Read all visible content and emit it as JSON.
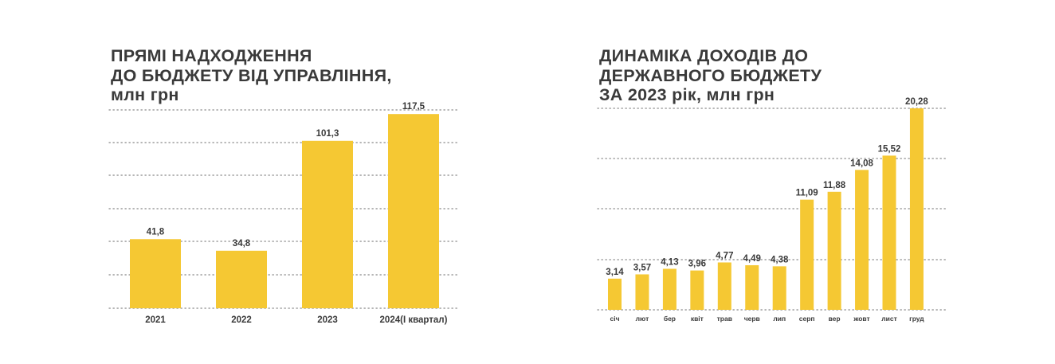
{
  "chart_data": [
    {
      "type": "bar",
      "title_lines": [
        "ПРЯМІ НАДХОДЖЕННЯ",
        "ДО БЮДЖЕТУ ВІД УПРАВЛІННЯ,",
        "млн грн"
      ],
      "categories": [
        "2021",
        "2022",
        "2023",
        "2024(І квартал)"
      ],
      "values": [
        41.8,
        34.8,
        101.3,
        117.5
      ],
      "value_labels": [
        "41,8",
        "34,8",
        "101,3",
        "117,5"
      ],
      "ylim": [
        0,
        120
      ],
      "grid": true,
      "bar_color": "#f5c833"
    },
    {
      "type": "bar",
      "title_lines": [
        "ДИНАМІКА ДОХОДІВ ДО",
        "ДЕРЖАВНОГО БЮДЖЕТУ",
        "ЗА 2023 рік, млн грн"
      ],
      "categories": [
        "січ",
        "лют",
        "бер",
        "квіт",
        "трав",
        "черв",
        "лип",
        "серп",
        "вер",
        "жовт",
        "лист",
        "груд"
      ],
      "values": [
        3.14,
        3.57,
        4.13,
        3.96,
        4.77,
        4.49,
        4.38,
        11.09,
        11.88,
        14.08,
        15.52,
        20.28
      ],
      "value_labels": [
        "3,14",
        "3,57",
        "4,13",
        "3,96",
        "4,77",
        "4,49",
        "4,38",
        "11,09",
        "11,88",
        "14,08",
        "15,52",
        "20,28"
      ],
      "ylim": [
        0,
        20.28
      ],
      "grid": true,
      "bar_color": "#f5c833"
    }
  ]
}
